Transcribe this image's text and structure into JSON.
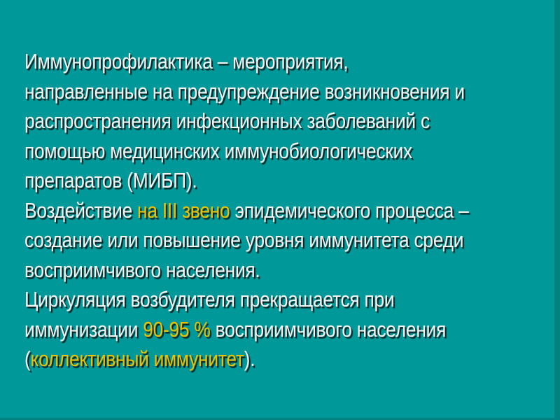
{
  "slide": {
    "colors": {
      "background": "#009898",
      "edge": "#008282",
      "text": "#F4F4F4",
      "highlight": "#EEC100",
      "shadow": "#0D1010"
    },
    "lines": [
      {
        "runs": [
          {
            "text": "Иммунопрофилактика – мероприятия,",
            "highlight": false
          }
        ]
      },
      {
        "runs": [
          {
            "text": "направленные на предупреждение возникновения и",
            "highlight": false
          }
        ]
      },
      {
        "runs": [
          {
            "text": "распространения инфекционных заболеваний с",
            "highlight": false
          }
        ]
      },
      {
        "runs": [
          {
            "text": "помощью медицинских иммунобиологических",
            "highlight": false
          }
        ]
      },
      {
        "runs": [
          {
            "text": "препаратов (МИБП).",
            "highlight": false
          }
        ]
      },
      {
        "runs": [
          {
            "text": "Воздействие ",
            "highlight": false
          },
          {
            "text": "на III звено",
            "highlight": true
          },
          {
            "text": " эпидемического процесса –",
            "highlight": false
          }
        ]
      },
      {
        "runs": [
          {
            "text": "создание или повышение уровня иммунитета среди",
            "highlight": false
          }
        ]
      },
      {
        "runs": [
          {
            "text": "восприимчивого населения.",
            "highlight": false
          }
        ]
      },
      {
        "runs": [
          {
            "text": "Циркуляция возбудителя прекращается при",
            "highlight": false
          }
        ]
      },
      {
        "runs": [
          {
            "text": "иммунизации ",
            "highlight": false
          },
          {
            "text": "90-95 %",
            "highlight": true
          },
          {
            "text": " восприимчивого населения",
            "highlight": false
          }
        ]
      },
      {
        "runs": [
          {
            "text": "(",
            "highlight": false
          },
          {
            "text": "коллективный иммунитет",
            "highlight": true
          },
          {
            "text": ").",
            "highlight": false
          }
        ]
      }
    ]
  }
}
